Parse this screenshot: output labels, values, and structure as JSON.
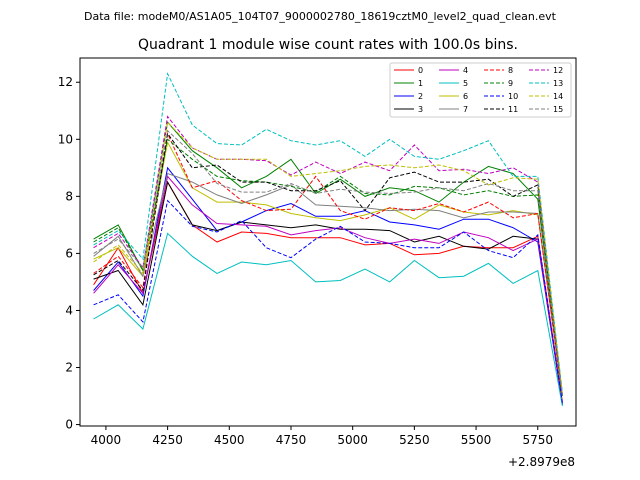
{
  "chart_data": {
    "type": "line",
    "suptitle": "Data file: modeM0/AS1A05_104T07_9000002780_18619cztM0_level2_quad_clean.evt",
    "title": "Quadrant 1 module wise count rates with 100.0s bins.",
    "xlabel": "",
    "ylabel": "",
    "x_offset_label": "+2.8979e8",
    "xlim": [
      3895,
      5905
    ],
    "ylim": [
      -0.05,
      12.85
    ],
    "x_ticks": [
      4000,
      4250,
      4500,
      4750,
      5000,
      5250,
      5500,
      5750
    ],
    "y_ticks": [
      0,
      2,
      4,
      6,
      8,
      10,
      12
    ],
    "legend_position": "top-right",
    "x": [
      3950,
      4050,
      4150,
      4250,
      4350,
      4450,
      4550,
      4650,
      4750,
      4850,
      4950,
      5050,
      5150,
      5250,
      5350,
      5450,
      5550,
      5650,
      5750,
      5850
    ],
    "series": [
      {
        "name": "0",
        "color": "#ff0000",
        "dash": "solid",
        "values": [
          4.9,
          6.2,
          4.6,
          8.5,
          7.0,
          6.4,
          6.75,
          6.7,
          6.55,
          6.55,
          6.55,
          6.3,
          6.35,
          5.95,
          6.0,
          6.25,
          6.2,
          6.2,
          6.6,
          0.8
        ]
      },
      {
        "name": "1",
        "color": "#008000",
        "dash": "solid",
        "values": [
          6.5,
          7.0,
          5.4,
          10.6,
          9.6,
          9.0,
          8.3,
          8.7,
          9.3,
          8.1,
          8.6,
          8.0,
          8.3,
          8.2,
          7.8,
          8.5,
          9.05,
          8.8,
          7.9,
          1.0
        ]
      },
      {
        "name": "2",
        "color": "#0000ff",
        "dash": "solid",
        "values": [
          4.7,
          5.7,
          4.5,
          9.0,
          7.9,
          6.8,
          7.1,
          7.5,
          7.75,
          7.3,
          7.3,
          7.5,
          7.1,
          7.0,
          6.85,
          7.2,
          7.2,
          6.9,
          6.4,
          0.7
        ]
      },
      {
        "name": "3",
        "color": "#000000",
        "dash": "solid",
        "values": [
          5.1,
          5.4,
          4.2,
          8.5,
          7.0,
          6.8,
          7.1,
          7.0,
          6.9,
          7.0,
          6.85,
          6.85,
          6.8,
          6.4,
          6.6,
          6.25,
          6.15,
          6.6,
          6.5,
          0.7
        ]
      },
      {
        "name": "4",
        "color": "#bf00bf",
        "dash": "solid",
        "values": [
          4.6,
          5.6,
          4.6,
          8.7,
          7.7,
          7.05,
          7.0,
          6.95,
          6.65,
          6.8,
          6.9,
          6.55,
          6.35,
          6.5,
          6.35,
          6.75,
          6.55,
          6.1,
          6.5,
          0.7
        ]
      },
      {
        "name": "5",
        "color": "#00bfbf",
        "dash": "solid",
        "values": [
          3.7,
          4.2,
          3.35,
          6.7,
          5.9,
          5.3,
          5.7,
          5.6,
          5.75,
          5.0,
          5.05,
          5.45,
          5.0,
          5.75,
          5.15,
          5.2,
          5.65,
          4.95,
          5.4,
          0.65
        ]
      },
      {
        "name": "6",
        "color": "#bfbf00",
        "dash": "solid",
        "values": [
          5.8,
          6.2,
          5.2,
          9.9,
          8.3,
          7.8,
          7.8,
          7.7,
          7.4,
          7.25,
          7.15,
          7.35,
          7.6,
          7.2,
          7.7,
          7.45,
          7.35,
          7.5,
          7.35,
          1.0
        ]
      },
      {
        "name": "7",
        "color": "#808080",
        "dash": "solid",
        "values": [
          5.9,
          6.6,
          5.2,
          8.8,
          8.5,
          8.05,
          7.75,
          8.05,
          8.4,
          7.7,
          7.65,
          7.6,
          7.5,
          7.55,
          7.5,
          7.25,
          7.45,
          7.45,
          7.4,
          1.0
        ]
      },
      {
        "name": "8",
        "color": "#ff0000",
        "dash": "dashed",
        "values": [
          5.3,
          5.9,
          4.8,
          10.2,
          8.3,
          8.55,
          7.85,
          7.5,
          7.55,
          8.7,
          7.5,
          7.2,
          7.6,
          7.5,
          7.75,
          7.45,
          7.8,
          7.25,
          7.4,
          1.0
        ]
      },
      {
        "name": "9",
        "color": "#008000",
        "dash": "dashed",
        "values": [
          6.4,
          6.9,
          5.4,
          10.0,
          9.3,
          8.7,
          8.55,
          8.5,
          8.35,
          8.15,
          8.7,
          8.1,
          8.05,
          8.35,
          8.3,
          8.05,
          8.2,
          8.0,
          8.05,
          1.0
        ]
      },
      {
        "name": "10",
        "color": "#0000ff",
        "dash": "dashed",
        "values": [
          4.2,
          4.55,
          3.6,
          7.85,
          6.95,
          6.75,
          7.15,
          6.2,
          5.85,
          6.5,
          6.95,
          6.4,
          6.35,
          6.2,
          6.2,
          6.75,
          6.1,
          5.85,
          6.65,
          0.75
        ]
      },
      {
        "name": "11",
        "color": "#000000",
        "dash": "dashed",
        "values": [
          5.25,
          5.75,
          4.7,
          10.2,
          9.0,
          9.1,
          8.5,
          8.5,
          8.2,
          8.2,
          8.55,
          7.5,
          8.65,
          8.85,
          8.5,
          8.5,
          8.6,
          8.0,
          8.4,
          1.0
        ]
      },
      {
        "name": "12",
        "color": "#bf00bf",
        "dash": "dashed",
        "values": [
          6.2,
          6.7,
          5.5,
          10.8,
          9.7,
          9.3,
          9.3,
          9.25,
          8.75,
          9.2,
          8.8,
          9.2,
          8.9,
          9.8,
          8.9,
          8.95,
          8.8,
          9.0,
          8.5,
          1.05
        ]
      },
      {
        "name": "13",
        "color": "#00bfbf",
        "dash": "dashed",
        "values": [
          6.3,
          6.8,
          5.8,
          12.3,
          10.5,
          9.85,
          9.8,
          10.35,
          9.95,
          9.8,
          9.95,
          9.4,
          10.0,
          9.4,
          9.3,
          9.6,
          9.95,
          8.7,
          8.7,
          1.1
        ]
      },
      {
        "name": "14",
        "color": "#bfbf00",
        "dash": "dashed",
        "values": [
          5.7,
          6.3,
          5.3,
          10.6,
          9.7,
          9.3,
          9.3,
          9.3,
          8.7,
          8.8,
          8.9,
          9.05,
          9.1,
          9.0,
          9.1,
          8.9,
          8.4,
          8.65,
          8.6,
          1.05
        ]
      },
      {
        "name": "15",
        "color": "#808080",
        "dash": "dashed",
        "values": [
          6.0,
          6.5,
          5.5,
          10.3,
          9.5,
          8.45,
          8.15,
          8.15,
          8.45,
          8.1,
          8.25,
          8.15,
          8.1,
          8.15,
          8.3,
          8.2,
          8.45,
          8.2,
          8.2,
          1.0
        ]
      }
    ]
  }
}
